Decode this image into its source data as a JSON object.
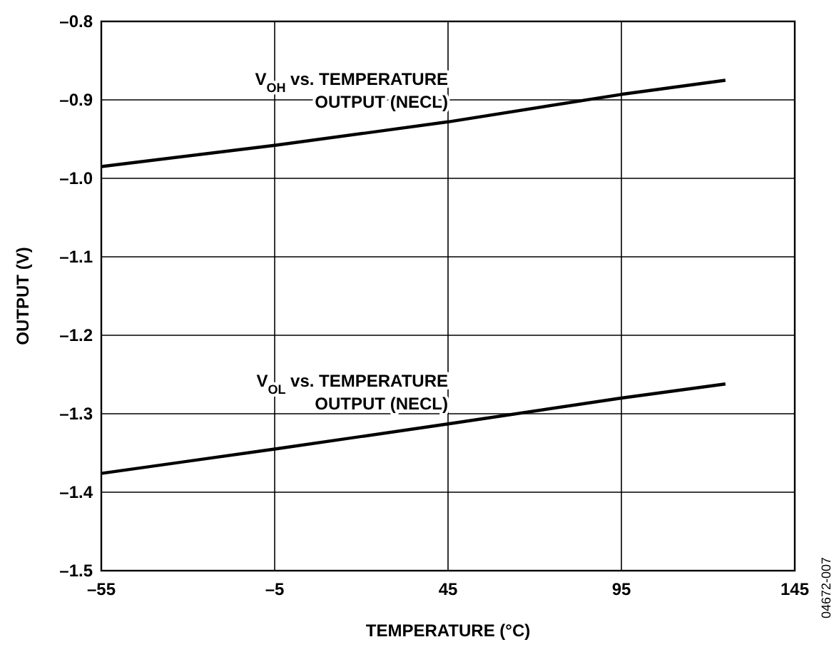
{
  "chart_data": {
    "type": "line",
    "xlabel": "TEMPERATURE (°C)",
    "ylabel": "OUTPUT (V)",
    "xlim": [
      -55,
      145
    ],
    "xticks": [
      {
        "value": -55,
        "label": "–55"
      },
      {
        "value": -5,
        "label": "–5"
      },
      45,
      95,
      145
    ],
    "ylim": [
      -1.5,
      -0.8
    ],
    "yticks": [
      {
        "value": -1.5,
        "label": "–1.5"
      },
      {
        "value": -1.4,
        "label": "–1.4"
      },
      {
        "value": -1.3,
        "label": "–1.3"
      },
      {
        "value": -1.2,
        "label": "–1.2"
      },
      {
        "value": -1.1,
        "label": "–1.1"
      },
      {
        "value": -1.0,
        "label": "–1.0"
      },
      {
        "value": -0.9,
        "label": "–0.9"
      },
      {
        "value": -0.8,
        "label": "–0.8"
      }
    ],
    "grid": true,
    "marker": "none",
    "line_style": "solid",
    "x": [
      -55,
      -5,
      45,
      95,
      125
    ],
    "series": [
      {
        "name": "V$_{OH}$ vs. TEMPERATURE\nOUTPUT (NECL)",
        "color": "#000000",
        "values": [
          -0.985,
          -0.958,
          -0.928,
          -0.893,
          -0.875
        ]
      },
      {
        "name": "V$_{OL}$ vs. TEMPERATURE\nOUTPUT (NECL)",
        "color": "#000000",
        "values": [
          -1.376,
          -1.345,
          -1.313,
          -1.28,
          -1.262
        ]
      }
    ],
    "annotations": [
      "04672-007"
    ]
  }
}
